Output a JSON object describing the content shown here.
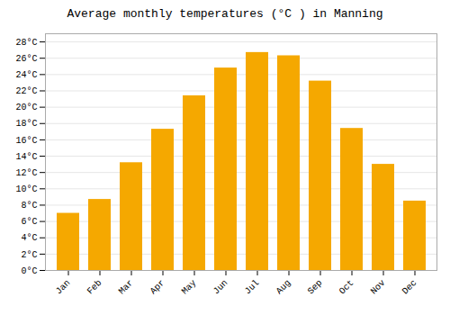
{
  "chart_data": {
    "type": "bar",
    "title": "Average monthly temperatures (°C ) in Manning",
    "categories": [
      "Jan",
      "Feb",
      "Mar",
      "Apr",
      "May",
      "Jun",
      "Jul",
      "Aug",
      "Sep",
      "Oct",
      "Nov",
      "Dec"
    ],
    "values": [
      7.0,
      8.7,
      13.2,
      17.3,
      21.4,
      24.8,
      26.7,
      26.3,
      23.2,
      17.4,
      13.0,
      8.5
    ],
    "color": "#F5A800",
    "ylim": [
      0,
      29
    ],
    "yticks": [
      {
        "value": 0,
        "label": "0°C"
      },
      {
        "value": 2,
        "label": "2°C"
      },
      {
        "value": 4,
        "label": "4°C"
      },
      {
        "value": 6,
        "label": "6°C"
      },
      {
        "value": 8,
        "label": "8°C"
      },
      {
        "value": 10,
        "label": "10°C"
      },
      {
        "value": 12,
        "label": "12°C"
      },
      {
        "value": 14,
        "label": "14°C"
      },
      {
        "value": 16,
        "label": "16°C"
      },
      {
        "value": 18,
        "label": "18°C"
      },
      {
        "value": 20,
        "label": "20°C"
      },
      {
        "value": 22,
        "label": "22°C"
      },
      {
        "value": 24,
        "label": "24°C"
      },
      {
        "value": 26,
        "label": "26°C"
      },
      {
        "value": 28,
        "label": "28°C"
      }
    ],
    "grid": true
  }
}
